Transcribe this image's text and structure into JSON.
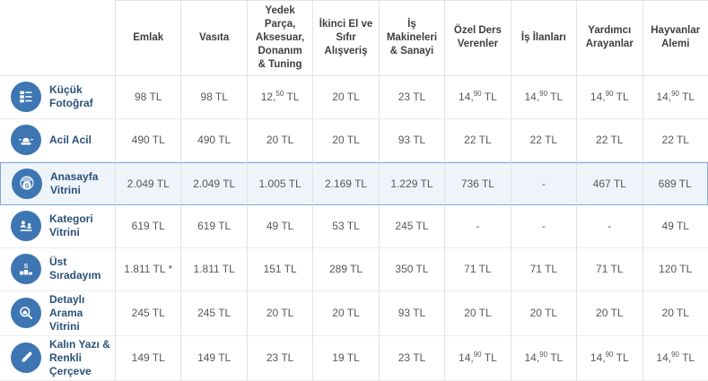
{
  "table": {
    "corner_label": "",
    "columns": [
      "Emlak",
      "Vasıta",
      "Yedek Parça, Aksesuar, Donanım & Tuning",
      "İkinci El ve Sıfır Alışveriş",
      "İş Makineleri & Sanayi",
      "Özel Ders Verenler",
      "İş İlanları",
      "Yardımcı Arayanlar",
      "Hayvanlar Alemi"
    ],
    "rows": [
      {
        "label": "Küçük Fotoğraf",
        "icon": "list-photos-icon",
        "highlighted": false,
        "values": [
          "98 TL",
          "98 TL",
          "12,50 TL",
          "20 TL",
          "23 TL",
          "14,90 TL",
          "14,90 TL",
          "14,90 TL",
          "14,90 TL"
        ]
      },
      {
        "label": "Acil Acil",
        "icon": "siren-icon",
        "highlighted": false,
        "values": [
          "490 TL",
          "490 TL",
          "20 TL",
          "20 TL",
          "93 TL",
          "22 TL",
          "22 TL",
          "22 TL",
          "22 TL"
        ]
      },
      {
        "label": "Anasayfa Vitrini",
        "icon": "globe-s-icon",
        "highlighted": true,
        "values": [
          "2.049 TL",
          "2.049 TL",
          "1.005 TL",
          "2.169 TL",
          "1.229 TL",
          "736 TL",
          "-",
          "467 TL",
          "689 TL"
        ]
      },
      {
        "label": "Kategori Vitrini",
        "icon": "category-showcase-icon",
        "highlighted": false,
        "values": [
          "619 TL",
          "619 TL",
          "49 TL",
          "53 TL",
          "245 TL",
          "-",
          "-",
          "-",
          "49 TL"
        ]
      },
      {
        "label": "Üst Sıradayım",
        "icon": "podium-icon",
        "highlighted": false,
        "values": [
          "1.811 TL *",
          "1.811 TL",
          "151 TL",
          "289 TL",
          "350 TL",
          "71 TL",
          "71 TL",
          "71 TL",
          "120 TL"
        ]
      },
      {
        "label": "Detaylı Arama Vitrini",
        "icon": "magnifier-house-icon",
        "highlighted": false,
        "values": [
          "245 TL",
          "245 TL",
          "20 TL",
          "20 TL",
          "93 TL",
          "20 TL",
          "20 TL",
          "20 TL",
          "20 TL"
        ]
      },
      {
        "label": "Kalın Yazı & Renkli Çerçeve",
        "icon": "pen-frame-icon",
        "highlighted": false,
        "values": [
          "149 TL",
          "149 TL",
          "23 TL",
          "19 TL",
          "23 TL",
          "14,90 TL",
          "14,90 TL",
          "14,90 TL",
          "14,90 TL"
        ]
      }
    ]
  },
  "colors": {
    "accent": "#3d76b2",
    "highlight_bg": "#eff4fa",
    "highlight_border": "#7fa9d9",
    "label_text": "#2b5179",
    "header_text": "#3f3f3f",
    "value_text": "#55585e",
    "grid_line": "#e2e2e2"
  }
}
